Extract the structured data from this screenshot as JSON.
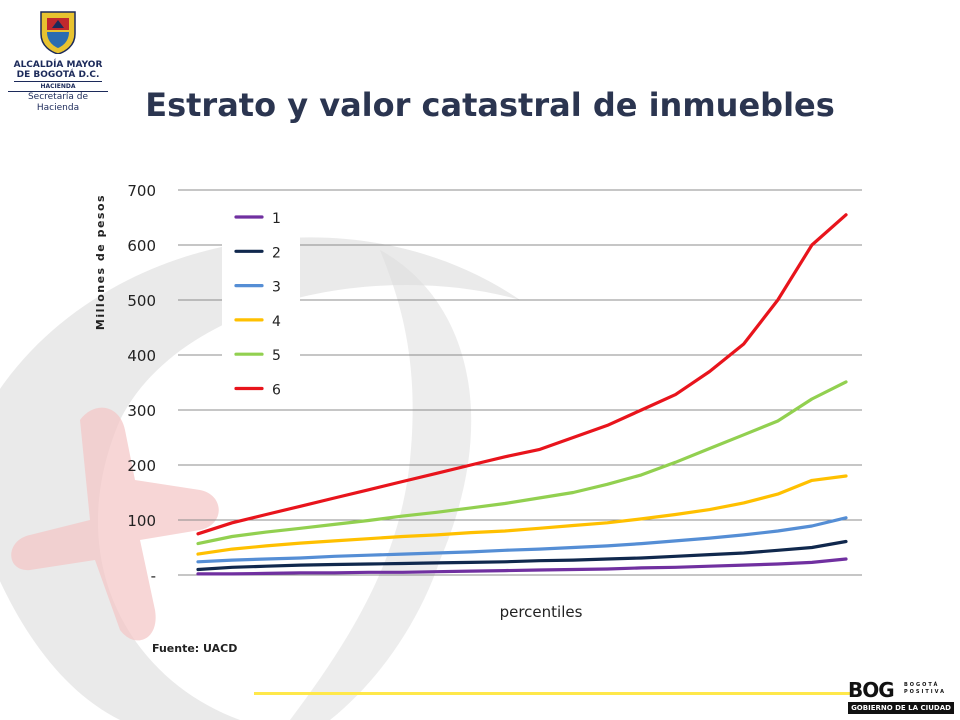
{
  "logo": {
    "line1": "ALCALDÍA MAYOR",
    "line2": "DE BOGOTÁ D.C.",
    "line3": "HACIENDA",
    "line4": "Secretaría de Hacienda"
  },
  "title": "Estrato y valor catastral de inmuebles",
  "source": "Fuente: UACD",
  "footer_logo": {
    "main": "BOG",
    "side_line1": "BOGOTÁ",
    "side_line2": "POSITIVA",
    "bar": "GOBIERNO DE LA CIUDAD"
  },
  "colors": {
    "title": "#2b3550",
    "decor_gray": "#dcdcdc",
    "decor_pink": "#f3c4c4",
    "accent_yellow": "#ffe84a"
  },
  "chart_data": {
    "type": "line",
    "title": "",
    "xlabel": "percentiles",
    "ylabel": "Millones de pesos",
    "ylim": [
      0,
      700
    ],
    "yticks": [
      0,
      100,
      200,
      300,
      400,
      500,
      600,
      700
    ],
    "ytick_labels": [
      "-",
      "100",
      "200",
      "300",
      "400",
      "500",
      "600",
      "700"
    ],
    "grid": true,
    "legend_position": "top-left",
    "x": [
      1,
      2,
      3,
      4,
      5,
      6,
      7,
      8,
      9,
      10,
      11,
      12,
      13,
      14,
      15,
      16,
      17,
      18,
      19,
      20
    ],
    "series": [
      {
        "name": "1",
        "color": "#7030a0",
        "values": [
          2,
          2,
          3,
          4,
          4,
          5,
          5,
          6,
          7,
          8,
          9,
          10,
          11,
          13,
          14,
          16,
          18,
          20,
          23,
          29
        ]
      },
      {
        "name": "2",
        "color": "#10284d",
        "values": [
          10,
          14,
          16,
          18,
          19,
          20,
          21,
          22,
          23,
          24,
          26,
          27,
          29,
          31,
          34,
          37,
          40,
          45,
          50,
          61
        ]
      },
      {
        "name": "3",
        "color": "#558ed5",
        "values": [
          24,
          27,
          29,
          31,
          34,
          36,
          38,
          40,
          42,
          45,
          47,
          50,
          53,
          57,
          62,
          67,
          73,
          80,
          89,
          104
        ]
      },
      {
        "name": "4",
        "color": "#ffc000",
        "values": [
          38,
          47,
          53,
          58,
          62,
          66,
          70,
          73,
          77,
          80,
          85,
          90,
          95,
          102,
          110,
          119,
          131,
          147,
          172,
          180
        ]
      },
      {
        "name": "5",
        "color": "#92d050",
        "values": [
          57,
          70,
          78,
          85,
          92,
          99,
          107,
          114,
          122,
          130,
          140,
          150,
          165,
          182,
          205,
          230,
          255,
          280,
          320,
          351
        ]
      },
      {
        "name": "6",
        "color": "#e8141c",
        "values": [
          75,
          95,
          110,
          125,
          140,
          155,
          170,
          185,
          200,
          215,
          228,
          250,
          272,
          300,
          328,
          370,
          420,
          500,
          600,
          655
        ]
      }
    ]
  }
}
